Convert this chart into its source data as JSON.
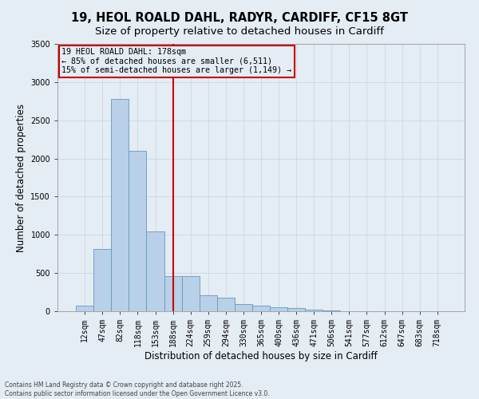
{
  "title_line1": "19, HEOL ROALD DAHL, RADYR, CARDIFF, CF15 8GT",
  "title_line2": "Size of property relative to detached houses in Cardiff",
  "xlabel": "Distribution of detached houses by size in Cardiff",
  "ylabel": "Number of detached properties",
  "categories": [
    "12sqm",
    "47sqm",
    "82sqm",
    "118sqm",
    "153sqm",
    "188sqm",
    "224sqm",
    "259sqm",
    "294sqm",
    "330sqm",
    "365sqm",
    "400sqm",
    "436sqm",
    "471sqm",
    "506sqm",
    "541sqm",
    "577sqm",
    "612sqm",
    "647sqm",
    "683sqm",
    "718sqm"
  ],
  "values": [
    70,
    820,
    2780,
    2100,
    1050,
    460,
    460,
    210,
    175,
    95,
    70,
    50,
    40,
    25,
    10,
    5,
    4,
    3,
    2,
    2,
    1
  ],
  "bar_color": "#b8d0e8",
  "bar_edge_color": "#6699bb",
  "vline_index": 5,
  "vline_color": "#cc0000",
  "annotation_text": "19 HEOL ROALD DAHL: 178sqm\n← 85% of detached houses are smaller (6,511)\n15% of semi-detached houses are larger (1,149) →",
  "annotation_box_color": "#cc0000",
  "ylim": [
    0,
    3500
  ],
  "yticks": [
    0,
    500,
    1000,
    1500,
    2000,
    2500,
    3000,
    3500
  ],
  "grid_color": "#c8d8e8",
  "background_color": "#e4ecf4",
  "footer_line1": "Contains HM Land Registry data © Crown copyright and database right 2025.",
  "footer_line2": "Contains public sector information licensed under the Open Government Licence v3.0.",
  "title_fontsize": 10.5,
  "subtitle_fontsize": 9.5,
  "tick_fontsize": 7,
  "label_fontsize": 8.5,
  "footer_fontsize": 5.5
}
